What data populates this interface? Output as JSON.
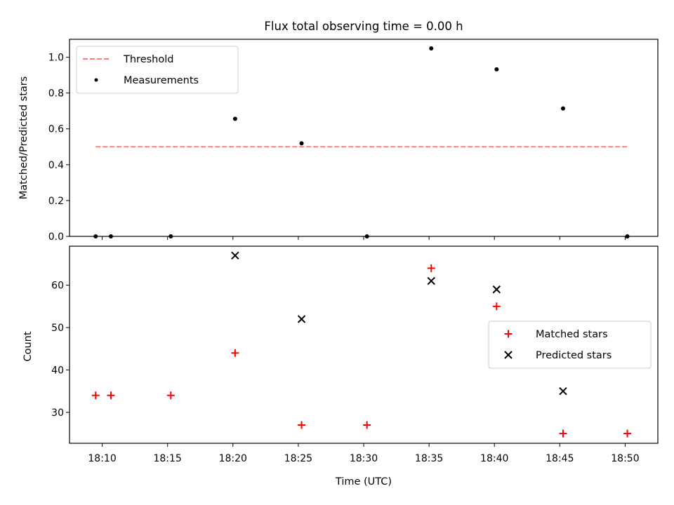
{
  "figure": {
    "title": "Flux total observing time = 0.00 h"
  },
  "chart_data": [
    {
      "type": "scatter",
      "panel": "top",
      "ylabel": "Matched/Predicted stars",
      "xlabel": "",
      "xlim": [
        "18:07:30",
        "18:52:30"
      ],
      "ylim": [
        0,
        1.1
      ],
      "yticks": [
        "0.0",
        "0.2",
        "0.4",
        "0.6",
        "0.8",
        "1.0"
      ],
      "xticks": [
        "18:10",
        "18:15",
        "18:20",
        "18:25",
        "18:30",
        "18:35",
        "18:40",
        "18:45",
        "18:50"
      ],
      "xtick_labels_visible": false,
      "legend_position": "upper left",
      "series": [
        {
          "name": "Threshold",
          "kind": "line",
          "style": "dashed",
          "color": "#ff7f7f",
          "x": [
            "18:09:30",
            "18:50:10"
          ],
          "y": [
            0.5,
            0.5
          ]
        },
        {
          "name": "Measurements",
          "kind": "scatter",
          "marker": "dot",
          "color": "#000000",
          "x": [
            "18:09:30",
            "18:10:40",
            "18:15:15",
            "18:20:10",
            "18:25:15",
            "18:30:15",
            "18:35:10",
            "18:40:10",
            "18:45:15",
            "18:50:10"
          ],
          "y": [
            0.0,
            0.0,
            0.0,
            0.656,
            0.519,
            0.0,
            1.049,
            0.932,
            0.714,
            0.0
          ]
        }
      ]
    },
    {
      "type": "scatter",
      "panel": "bottom",
      "ylabel": "Count",
      "xlabel": "Time (UTC)",
      "xlim": [
        "18:07:30",
        "18:52:30"
      ],
      "ylim": [
        22.7,
        69.2
      ],
      "yticks": [
        "30",
        "40",
        "50",
        "60"
      ],
      "xticks": [
        "18:10",
        "18:15",
        "18:20",
        "18:25",
        "18:30",
        "18:35",
        "18:40",
        "18:45",
        "18:50"
      ],
      "legend_position": "center right",
      "series": [
        {
          "name": "Matched stars",
          "marker": "plus",
          "color": "#ff0000",
          "x": [
            "18:09:30",
            "18:10:40",
            "18:15:15",
            "18:20:10",
            "18:25:15",
            "18:30:15",
            "18:35:10",
            "18:40:10",
            "18:45:15",
            "18:50:10"
          ],
          "y": [
            34,
            34,
            34,
            44,
            27,
            27,
            64,
            55,
            25,
            25
          ]
        },
        {
          "name": "Predicted stars",
          "marker": "x",
          "color": "#000000",
          "x": [
            "18:20:10",
            "18:25:15",
            "18:35:10",
            "18:40:10",
            "18:45:15"
          ],
          "y": [
            67,
            52,
            61,
            59,
            35
          ]
        }
      ]
    }
  ]
}
